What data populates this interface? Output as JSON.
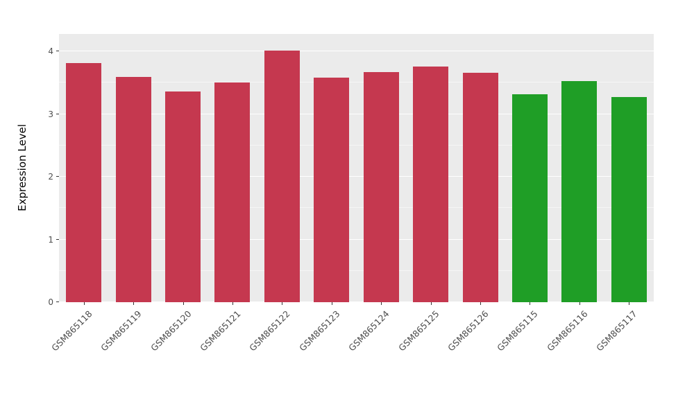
{
  "figure": {
    "background": "#FFFFFF",
    "panel_background": "#EBEBEB",
    "grid_major_color": "#FFFFFF",
    "grid_minor_color": "#FFFFFF",
    "tick_label_color": "#4D4D4D",
    "axis_title_color": "#000000"
  },
  "chart_data": {
    "type": "bar",
    "title": "",
    "xlabel": "",
    "ylabel": "Expression Level",
    "categories": [
      "GSM865118",
      "GSM865119",
      "GSM865120",
      "GSM865121",
      "GSM865122",
      "GSM865123",
      "GSM865124",
      "GSM865125",
      "GSM865126",
      "GSM865115",
      "GSM865116",
      "GSM865117"
    ],
    "values": [
      3.81,
      3.59,
      3.36,
      3.5,
      4.01,
      3.58,
      3.67,
      3.76,
      3.66,
      3.31,
      3.53,
      3.27
    ],
    "bar_colors": [
      "#C5384F",
      "#C5384F",
      "#C5384F",
      "#C5384F",
      "#C5384F",
      "#C5384F",
      "#C5384F",
      "#C5384F",
      "#C5384F",
      "#1F9E26",
      "#1F9E26",
      "#1F9E26"
    ],
    "group_colors": {
      "red": "#C5384F",
      "green": "#1F9E26"
    },
    "ylim": [
      0,
      4.28
    ],
    "yticks": [
      0,
      1,
      2,
      3,
      4
    ],
    "grid": "major and minor white horizontal gridlines on gray panel",
    "legend": "none",
    "x_tick_label_angle": 45
  }
}
